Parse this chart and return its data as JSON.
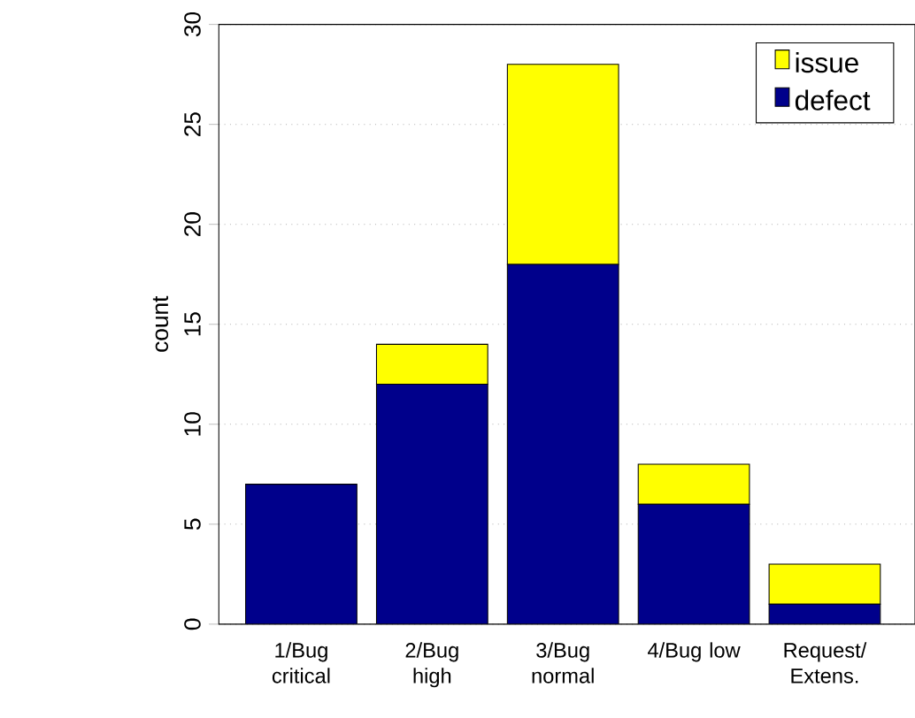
{
  "chart_data": {
    "type": "bar",
    "stacked": true,
    "ylabel": "count",
    "categories": [
      "1/Bug critical",
      "2/Bug high",
      "3/Bug normal",
      "4/Bug low",
      "Request/ Extens."
    ],
    "series": [
      {
        "name": "defect",
        "color": "#00008b",
        "values": [
          7,
          12,
          18,
          6,
          1
        ]
      },
      {
        "name": "issue",
        "color": "#ffff00",
        "values": [
          0,
          2,
          10,
          2,
          2
        ]
      }
    ],
    "ylim": [
      0,
      30
    ],
    "yticks": [
      0,
      5,
      10,
      15,
      20,
      25,
      30
    ],
    "grid": "y",
    "legend": "top right"
  }
}
